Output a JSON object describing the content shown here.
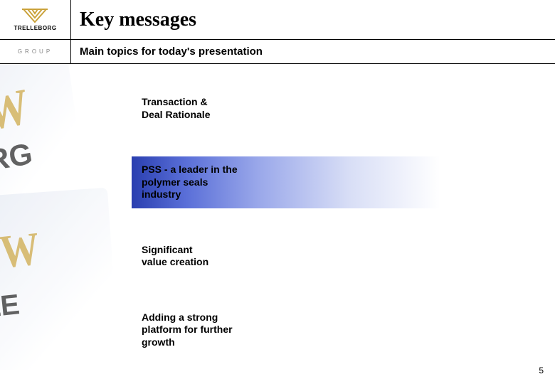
{
  "brand": {
    "name": "TRELLEBORG",
    "group_label": "GROUP",
    "logo_color": "#caa23a"
  },
  "slide": {
    "title": "Key messages",
    "subtitle": "Main topics for today's presentation",
    "page_number": "5"
  },
  "topics": [
    {
      "text": "Transaction &\nDeal Rationale",
      "highlight": false
    },
    {
      "text": "PSS - a leader in the\npolymer seals\nindustry",
      "highlight": true
    },
    {
      "text": "Significant\nvalue creation",
      "highlight": false
    },
    {
      "text": "Adding a strong\nplatform for further\ngrowth",
      "highlight": false
    }
  ],
  "styles": {
    "highlight_gradient_start": "#2a3fb0",
    "highlight_gradient_end": "#ffffff",
    "title_font": "Times New Roman",
    "title_size_pt": 28,
    "body_font": "Arial",
    "topic_size_pt": 14,
    "background": "#ffffff"
  }
}
